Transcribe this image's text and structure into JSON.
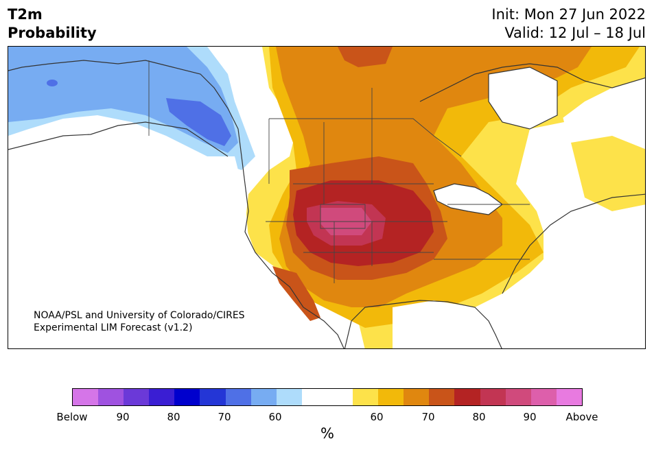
{
  "header": {
    "title_line1": "T2m",
    "title_line2": "Probability",
    "init_text": "Init: Mon 27 Jun 2022",
    "valid_text": "Valid: 12 Jul – 18 Jul"
  },
  "map": {
    "credit_line1": "NOAA/PSL and University of Colorado/CIRES",
    "credit_line2": "Experimental LIM Forecast (v1.2)"
  },
  "colorbar": {
    "colors": [
      "#d575e8",
      "#9f52e0",
      "#6b39d8",
      "#3a1ed3",
      "#0000cd",
      "#2436d6",
      "#4f70e6",
      "#77acf2",
      "#aedcfb",
      "#ffffff",
      "#ffffff",
      "#fde24a",
      "#f2b90a",
      "#e0870f",
      "#c95419",
      "#b42323",
      "#c23553",
      "#d04a7c",
      "#dd5fab",
      "#e87ae0"
    ],
    "ticks": [
      "Below",
      "90",
      "80",
      "70",
      "60",
      "60",
      "70",
      "80",
      "90",
      "Above"
    ],
    "unit": "%"
  }
}
